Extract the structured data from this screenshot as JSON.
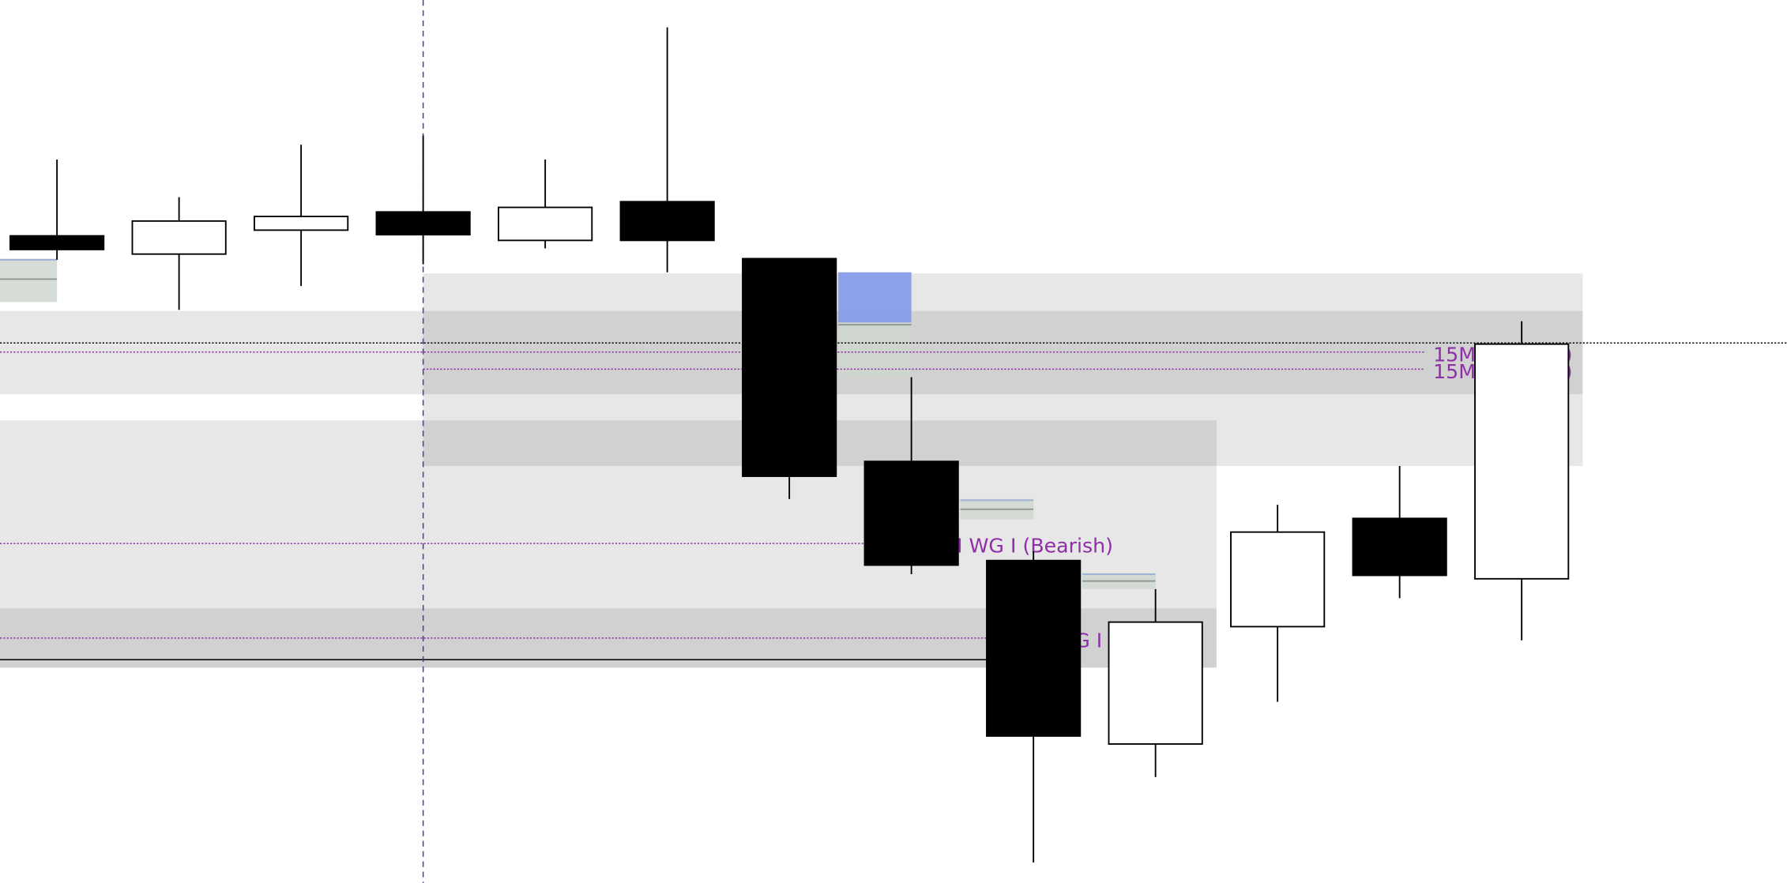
{
  "chart_data": {
    "type": "candlestick",
    "title": "",
    "xlabel": "",
    "ylabel": "",
    "ylim": [
      0,
      77.5
    ],
    "grid": false,
    "colors": {
      "bearish_body": "#000000",
      "bullish_body": "#ffffff",
      "zone": "#000000",
      "imbalance": "#7f97ec",
      "label": "#8e2fa8",
      "crosshair": "#3a3aa0"
    },
    "candles": [
      {
        "open": 56.8,
        "high": 63.5,
        "low": 54.7,
        "close": 55.6
      },
      {
        "open": 55.2,
        "high": 60.2,
        "low": 50.3,
        "close": 58.1
      },
      {
        "open": 57.3,
        "high": 64.8,
        "low": 52.4,
        "close": 58.5
      },
      {
        "open": 58.9,
        "high": 65.6,
        "low": 54.3,
        "close": 56.9
      },
      {
        "open": 56.4,
        "high": 63.5,
        "low": 55.7,
        "close": 59.3
      },
      {
        "open": 59.8,
        "high": 75.1,
        "low": 53.6,
        "close": 56.4
      },
      {
        "open": 54.8,
        "high": 54.8,
        "low": 33.7,
        "close": 35.7
      },
      {
        "open": 37.0,
        "high": 44.4,
        "low": 27.1,
        "close": 27.9
      },
      {
        "open": 28.3,
        "high": 29.1,
        "low": 1.8,
        "close": 12.9
      },
      {
        "open": 12.2,
        "high": 25.8,
        "low": 9.3,
        "close": 22.9
      },
      {
        "open": 22.5,
        "high": 33.2,
        "low": 15.9,
        "close": 30.8
      },
      {
        "open": 32.0,
        "high": 36.6,
        "low": 25.0,
        "close": 27.0
      },
      {
        "open": 26.7,
        "high": 49.3,
        "low": 21.3,
        "close": 47.3
      }
    ],
    "zones": [
      {
        "from": 0,
        "to": 12.5,
        "top": 50.2,
        "bottom": 42.9
      },
      {
        "from": 3,
        "to": 12.5,
        "top": 53.5,
        "bottom": 36.6
      },
      {
        "from": 0,
        "to": 9.5,
        "top": 40.6,
        "bottom": 18.9
      },
      {
        "from": 0,
        "to": 9.5,
        "top": 24.1,
        "bottom": 18.9
      }
    ],
    "imbalances": [
      {
        "from": 0,
        "to": 0,
        "top": 54.8,
        "bottom": 51.0,
        "mid": 53.0
      },
      {
        "from": 6.4,
        "to": 7,
        "top": 53.6,
        "bottom": 44.4,
        "mid": 49.0,
        "filled_top": 49.2
      },
      {
        "from": 7.4,
        "to": 8,
        "top": 33.7,
        "bottom": 31.9,
        "mid": 32.8
      },
      {
        "from": 8.4,
        "to": 9,
        "top": 27.2,
        "bottom": 25.8,
        "mid": 26.5
      }
    ],
    "levels": [
      {
        "price": 47.4,
        "from": 0,
        "to": 14.5,
        "style": "black-dotted"
      },
      {
        "price": 46.6,
        "from": 0,
        "to": 11.2,
        "style": "purple-dotted",
        "label": "15M (Bearish)"
      },
      {
        "price": 45.1,
        "from": 3,
        "to": 11.2,
        "style": "purple-dotted",
        "label": "15M (Bearish)"
      },
      {
        "price": 29.8,
        "from": 0,
        "to": 7.1,
        "style": "purple-dotted",
        "label": "5M WG I (Bearish)"
      },
      {
        "price": 21.5,
        "from": 0,
        "to": 7.7,
        "style": "purple-dotted",
        "label": "30M WG I (Bearish)"
      },
      {
        "price": 19.6,
        "from": 0,
        "to": 8,
        "style": "black-solid"
      }
    ],
    "crosshair_x_index": 3
  }
}
